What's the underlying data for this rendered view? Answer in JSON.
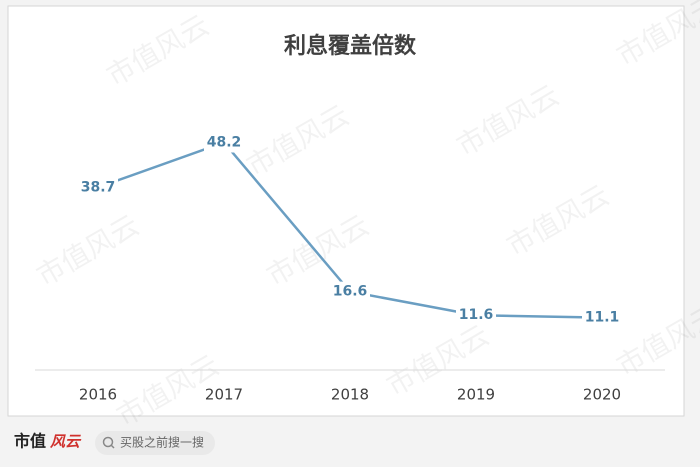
{
  "chart_data": {
    "type": "line",
    "title": "利息覆盖倍数",
    "categories": [
      "2016",
      "2017",
      "2018",
      "2019",
      "2020"
    ],
    "series": [
      {
        "name": "利息覆盖倍数",
        "color": "#6a9ec2",
        "values": [
          38.7,
          48.2,
          16.6,
          11.6,
          11.1
        ]
      }
    ],
    "label_color": "#4a7fa3"
  },
  "watermark": "市值风云",
  "footer": {
    "logo": "市值",
    "logo_accent": "风云",
    "search": "买股之前搜一搜"
  }
}
